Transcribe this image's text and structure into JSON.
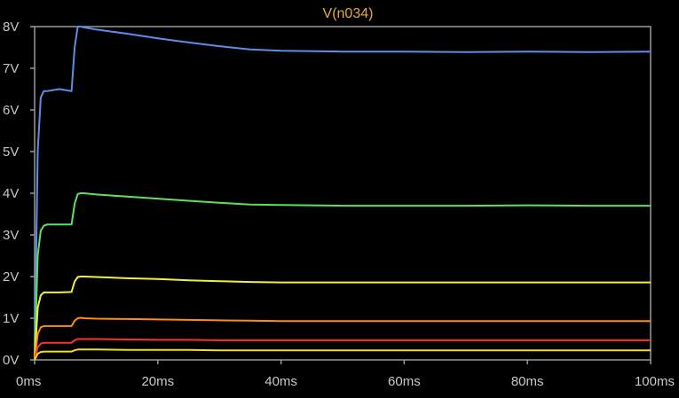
{
  "chart_data": {
    "type": "line",
    "title": "V(n034)",
    "xlabel": "",
    "ylabel": "",
    "x_unit": "ms",
    "y_unit": "V",
    "xlim": [
      0,
      100
    ],
    "ylim": [
      0,
      8
    ],
    "xticks": [
      "0ms",
      "20ms",
      "40ms",
      "60ms",
      "80ms",
      "100ms"
    ],
    "yticks": [
      "0V",
      "1V",
      "2V",
      "3V",
      "4V",
      "5V",
      "6V",
      "7V",
      "8V"
    ],
    "grid": false,
    "legend": false,
    "series": [
      {
        "color": "#5b8fe8",
        "x": [
          0,
          0.5,
          1,
          1.5,
          2,
          4,
          6,
          6.5,
          7,
          7.5,
          8,
          10,
          15,
          20,
          25,
          30,
          35,
          40,
          50,
          60,
          70,
          80,
          90,
          100
        ],
        "y": [
          0,
          5.0,
          6.3,
          6.45,
          6.45,
          6.5,
          6.45,
          7.5,
          8.0,
          8.0,
          7.98,
          7.93,
          7.83,
          7.72,
          7.62,
          7.53,
          7.45,
          7.42,
          7.4,
          7.4,
          7.39,
          7.4,
          7.39,
          7.4
        ]
      },
      {
        "color": "#5fe05f",
        "x": [
          0,
          0.5,
          1,
          1.5,
          2,
          4,
          6,
          6.5,
          7,
          7.5,
          8,
          10,
          15,
          20,
          25,
          30,
          35,
          40,
          50,
          60,
          70,
          80,
          90,
          100
        ],
        "y": [
          0,
          2.5,
          3.1,
          3.22,
          3.25,
          3.25,
          3.25,
          3.75,
          3.98,
          4.0,
          4.0,
          3.97,
          3.92,
          3.87,
          3.82,
          3.77,
          3.73,
          3.72,
          3.7,
          3.7,
          3.7,
          3.71,
          3.7,
          3.7
        ]
      },
      {
        "color": "#f5f03c",
        "x": [
          0,
          0.5,
          1,
          1.5,
          2,
          4,
          6,
          6.5,
          7,
          7.5,
          8,
          10,
          15,
          20,
          25,
          30,
          35,
          40,
          50,
          60,
          70,
          80,
          90,
          100
        ],
        "y": [
          0,
          1.25,
          1.55,
          1.62,
          1.62,
          1.62,
          1.63,
          1.88,
          1.99,
          2.0,
          2.0,
          1.99,
          1.96,
          1.94,
          1.91,
          1.89,
          1.87,
          1.86,
          1.86,
          1.86,
          1.86,
          1.86,
          1.86,
          1.86
        ]
      },
      {
        "color": "#ff8c1a",
        "x": [
          0,
          0.5,
          1,
          1.5,
          2,
          4,
          6,
          6.5,
          7,
          7.5,
          8,
          10,
          15,
          20,
          25,
          30,
          35,
          40,
          50,
          60,
          70,
          80,
          90,
          100
        ],
        "y": [
          0,
          0.62,
          0.78,
          0.81,
          0.81,
          0.81,
          0.81,
          0.94,
          1.0,
          1.01,
          1.0,
          0.99,
          0.98,
          0.97,
          0.96,
          0.95,
          0.94,
          0.93,
          0.93,
          0.93,
          0.93,
          0.93,
          0.93,
          0.93
        ]
      },
      {
        "color": "#ff3030",
        "x": [
          0,
          0.5,
          1,
          1.5,
          2,
          4,
          6,
          6.5,
          7,
          7.5,
          8,
          10,
          15,
          20,
          25,
          30,
          35,
          40,
          50,
          60,
          70,
          80,
          90,
          100
        ],
        "y": [
          0,
          0.3,
          0.39,
          0.41,
          0.41,
          0.41,
          0.41,
          0.47,
          0.5,
          0.5,
          0.5,
          0.5,
          0.49,
          0.48,
          0.48,
          0.47,
          0.47,
          0.47,
          0.47,
          0.47,
          0.47,
          0.47,
          0.47,
          0.47
        ]
      },
      {
        "color": "#f0e020",
        "x": [
          0,
          0.5,
          1,
          1.5,
          2,
          4,
          6,
          6.5,
          7,
          7.5,
          8,
          10,
          15,
          20,
          25,
          30,
          35,
          40,
          50,
          60,
          70,
          80,
          90,
          100
        ],
        "y": [
          0,
          0.15,
          0.19,
          0.2,
          0.2,
          0.2,
          0.2,
          0.23,
          0.25,
          0.25,
          0.25,
          0.25,
          0.24,
          0.24,
          0.24,
          0.23,
          0.23,
          0.23,
          0.23,
          0.23,
          0.23,
          0.23,
          0.23,
          0.23
        ]
      }
    ]
  },
  "style": {
    "background": "#000000",
    "frame_color": "#9a9a9a",
    "title_color": "#e8a93a",
    "tick_label_color": "#c8c8c8"
  }
}
